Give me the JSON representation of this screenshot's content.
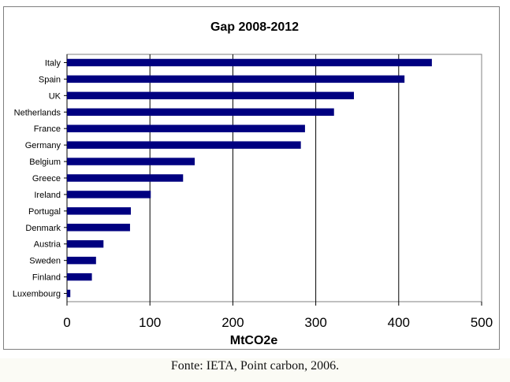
{
  "caption": "Fonte: IETA, Point carbon, 2006.",
  "chart_data": {
    "type": "bar",
    "orientation": "horizontal",
    "title": "Gap 2008-2012",
    "xlabel": "MtCO2e",
    "ylabel": "",
    "xlim": [
      0,
      500
    ],
    "xticks": [
      0,
      100,
      200,
      300,
      400,
      500
    ],
    "grid": "vertical",
    "legend": "none",
    "bar_color": "#000080",
    "categories": [
      "Italy",
      "Spain",
      "UK",
      "Netherlands",
      "France",
      "Germany",
      "Belgium",
      "Greece",
      "Ireland",
      "Portugal",
      "Denmark",
      "Austria",
      "Sweden",
      "Finland",
      "Luxembourg"
    ],
    "values": [
      440,
      407,
      346,
      322,
      287,
      282,
      154,
      140,
      101,
      77,
      76,
      44,
      35,
      30,
      4
    ]
  }
}
